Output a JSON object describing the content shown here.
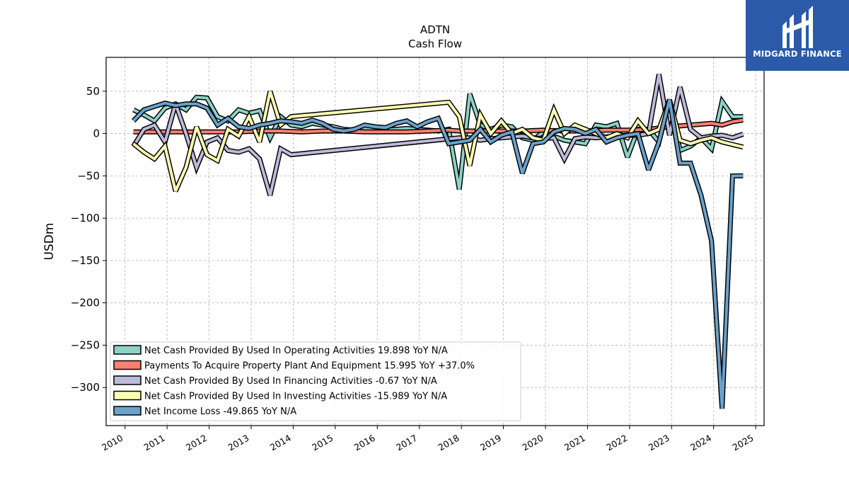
{
  "chart_data": {
    "type": "line",
    "title": "ADTN",
    "subtitle": "Cash Flow",
    "xlabel": "",
    "ylabel": "USDm",
    "xlim": [
      2009.55,
      2025.2
    ],
    "ylim": [
      -345,
      90
    ],
    "x_ticks": [
      "2010",
      "2011",
      "2012",
      "2013",
      "2014",
      "2015",
      "2016",
      "2017",
      "2018",
      "2019",
      "2020",
      "2021",
      "2022",
      "2023",
      "2024",
      "2025"
    ],
    "y_ticks": [
      50,
      0,
      -50,
      -100,
      -150,
      -200,
      -250,
      -300
    ],
    "y_tick_labels": [
      "50",
      "0",
      "−50",
      "−100",
      "−150",
      "−200",
      "−250",
      "−300"
    ],
    "grid": true,
    "legend_position": "lower-left",
    "series": [
      {
        "name": "Net Cash Provided By Used In Operating Activities  19.898 YoY N/A",
        "color": "#8dd3c7",
        "x": [
          2010.2,
          2010.45,
          2010.7,
          2010.95,
          2011.2,
          2011.45,
          2011.7,
          2011.95,
          2012.2,
          2012.45,
          2012.7,
          2012.95,
          2013.2,
          2013.45,
          2013.7,
          2013.95,
          2014.2,
          2014.45,
          2014.7,
          2014.95,
          2015.2,
          2015.45,
          2015.7,
          2015.95,
          2016.2,
          2016.45,
          2016.7,
          2016.95,
          2017.2,
          2017.45,
          2017.7,
          2017.95,
          2018.2,
          2018.45,
          2018.7,
          2018.95,
          2019.2,
          2019.45,
          2019.7,
          2019.95,
          2020.2,
          2020.45,
          2020.7,
          2020.95,
          2021.2,
          2021.45,
          2021.7,
          2021.95,
          2022.2,
          2022.45,
          2022.7,
          2022.95,
          2023.2,
          2023.45,
          2023.7,
          2023.95,
          2024.2,
          2024.45,
          2024.7
        ],
        "y": [
          28,
          22,
          15,
          30,
          35,
          28,
          43,
          42,
          20,
          15,
          28,
          24,
          27,
          -5,
          20,
          10,
          8,
          12,
          10,
          8,
          5,
          4,
          6,
          5,
          4,
          5,
          6,
          5,
          4,
          3,
          5,
          -66,
          47,
          10,
          5,
          10,
          8,
          -5,
          -8,
          2,
          -3,
          -8,
          -10,
          -12,
          10,
          8,
          12,
          -28,
          5,
          5,
          -10,
          40,
          -20,
          -15,
          -5,
          -18,
          38,
          20,
          19.9
        ]
      },
      {
        "name": "Payments To Acquire Property Plant And Equipment  15.995 YoY +37.0%",
        "color": "#fb8072",
        "x": [
          2010.2,
          2010.7,
          2011.2,
          2011.7,
          2012.2,
          2012.7,
          2013.2,
          2013.7,
          2014.2,
          2014.7,
          2015.2,
          2015.7,
          2016.2,
          2016.7,
          2017.2,
          2017.7,
          2017.95,
          2018.45,
          2018.95,
          2019.45,
          2019.95,
          2020.45,
          2020.95,
          2021.45,
          2021.95,
          2022.45,
          2022.95,
          2023.45,
          2023.95,
          2024.2,
          2024.45,
          2024.7
        ],
        "y": [
          2,
          2,
          2,
          2,
          2,
          2,
          3,
          3,
          2,
          3,
          3,
          2,
          2,
          2,
          3,
          4,
          3,
          3,
          3,
          3,
          4,
          3,
          3,
          4,
          4,
          5,
          8,
          10,
          12,
          10,
          14,
          16
        ]
      },
      {
        "name": "Net Cash Provided By Used In Financing Activities  -0.67 YoY N/A",
        "color": "#bebada",
        "x": [
          2010.2,
          2010.45,
          2010.7,
          2010.95,
          2011.2,
          2011.45,
          2011.7,
          2011.95,
          2012.2,
          2012.45,
          2012.7,
          2012.95,
          2013.2,
          2013.45,
          2013.7,
          2013.95,
          2017.95,
          2018.2,
          2018.45,
          2018.7,
          2018.95,
          2019.2,
          2019.45,
          2019.7,
          2019.95,
          2020.2,
          2020.45,
          2020.7,
          2020.95,
          2021.2,
          2021.45,
          2021.7,
          2021.95,
          2022.2,
          2022.45,
          2022.7,
          2022.95,
          2023.2,
          2023.45,
          2023.7,
          2023.95,
          2024.2,
          2024.45,
          2024.7
        ],
        "y": [
          -15,
          5,
          10,
          -10,
          35,
          0,
          -40,
          -10,
          -5,
          -20,
          -22,
          -18,
          -30,
          -73,
          -18,
          -25,
          -5,
          -5,
          -8,
          -6,
          -5,
          -4,
          -3,
          -5,
          -6,
          -5,
          -30,
          -6,
          -4,
          -5,
          -4,
          -3,
          -2,
          -2,
          0,
          70,
          -2,
          55,
          5,
          -5,
          -3,
          -2,
          -5,
          -0.67
        ]
      },
      {
        "name": "Net Cash Provided By Used In Investing Activities  -15.989 YoY N/A",
        "color": "#ffffb3",
        "x": [
          2010.2,
          2010.45,
          2010.7,
          2010.95,
          2011.2,
          2011.45,
          2011.7,
          2011.95,
          2012.2,
          2012.45,
          2012.7,
          2012.95,
          2013.2,
          2013.45,
          2013.7,
          2013.95,
          2017.7,
          2017.95,
          2018.2,
          2018.45,
          2018.7,
          2018.95,
          2019.2,
          2019.45,
          2019.7,
          2019.95,
          2020.2,
          2020.45,
          2020.7,
          2020.95,
          2021.2,
          2021.45,
          2021.7,
          2021.95,
          2022.2,
          2022.45,
          2022.7,
          2022.95,
          2023.2,
          2023.45,
          2023.7,
          2023.95,
          2024.2,
          2024.45,
          2024.7
        ],
        "y": [
          -12,
          -22,
          -30,
          -15,
          -68,
          -40,
          8,
          -25,
          -32,
          5,
          -3,
          20,
          -10,
          50,
          10,
          20,
          37,
          20,
          -38,
          22,
          0,
          15,
          0,
          5,
          -5,
          -8,
          28,
          0,
          10,
          5,
          0,
          -5,
          0,
          -5,
          15,
          0,
          5,
          40,
          -8,
          -12,
          -8,
          -5,
          -10,
          -13,
          -16
        ]
      },
      {
        "name": "Net Income Loss  -49.865 YoY N/A",
        "color": "#6aa2cc",
        "x": [
          2010.2,
          2010.45,
          2010.7,
          2010.95,
          2011.2,
          2011.45,
          2011.7,
          2011.95,
          2012.2,
          2012.45,
          2012.7,
          2012.95,
          2013.2,
          2013.45,
          2013.7,
          2013.95,
          2014.2,
          2014.45,
          2014.7,
          2014.95,
          2015.2,
          2015.45,
          2015.7,
          2015.95,
          2016.2,
          2016.45,
          2016.7,
          2016.95,
          2017.2,
          2017.45,
          2017.7,
          2017.95,
          2018.2,
          2018.45,
          2018.7,
          2018.95,
          2019.2,
          2019.45,
          2019.7,
          2019.95,
          2020.2,
          2020.45,
          2020.7,
          2020.95,
          2021.2,
          2021.45,
          2021.7,
          2021.95,
          2022.2,
          2022.45,
          2022.7,
          2022.95,
          2023.2,
          2023.45,
          2023.7,
          2023.95,
          2024.2,
          2024.45,
          2024.7
        ],
        "y": [
          15,
          28,
          32,
          36,
          33,
          35,
          35,
          30,
          10,
          18,
          8,
          6,
          10,
          12,
          15,
          14,
          12,
          16,
          12,
          5,
          3,
          5,
          10,
          8,
          7,
          12,
          15,
          8,
          14,
          18,
          -12,
          -10,
          -8,
          5,
          -10,
          -2,
          2,
          -47,
          -12,
          -10,
          2,
          6,
          5,
          0,
          5,
          -10,
          -5,
          -2,
          0,
          -43,
          -10,
          40,
          -35,
          -35,
          -73,
          -127,
          -325,
          -50,
          -49.865
        ]
      }
    ]
  },
  "logo": {
    "text": "MIDGARD FINANCE"
  }
}
